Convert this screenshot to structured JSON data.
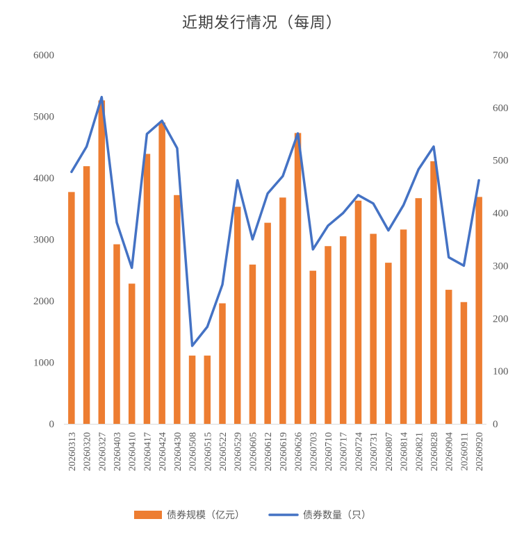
{
  "chart_data": {
    "type": "bar+line",
    "title": "近期发行情况（每周）",
    "categories": [
      "20260313",
      "20260320",
      "20260327",
      "20260403",
      "20260410",
      "20260417",
      "20260424",
      "20260430",
      "20260508",
      "20260515",
      "20260522",
      "20260529",
      "20260605",
      "20260612",
      "20260619",
      "20260626",
      "20260703",
      "20260710",
      "20260717",
      "20260724",
      "20260731",
      "20260807",
      "20260814",
      "20260821",
      "20260828",
      "20260904",
      "20260911",
      "20260920"
    ],
    "series": [
      {
        "name": "债券规模（亿元）",
        "type": "bar",
        "axis": "left",
        "color": "#ED7D31",
        "values": [
          3770,
          4190,
          5260,
          2920,
          2280,
          4390,
          4900,
          3720,
          1110,
          1110,
          1960,
          3530,
          2590,
          3270,
          3680,
          4730,
          2490,
          2890,
          3050,
          3630,
          3090,
          2620,
          3160,
          3670,
          4270,
          2180,
          1980,
          3690
        ]
      },
      {
        "name": "债券数量（只）",
        "type": "line",
        "axis": "right",
        "color": "#4472C4",
        "values": [
          478,
          526,
          620,
          382,
          296,
          550,
          575,
          523,
          148,
          184,
          264,
          462,
          350,
          437,
          470,
          551,
          331,
          376,
          400,
          434,
          418,
          367,
          415,
          483,
          526,
          316,
          300,
          462
        ]
      }
    ],
    "y_left": {
      "min": 0,
      "max": 6000,
      "ticks": [
        "0",
        "1000",
        "2000",
        "3000",
        "4000",
        "5000",
        "6000"
      ]
    },
    "y_right": {
      "min": 0,
      "max": 700,
      "ticks": [
        "0",
        "100",
        "200",
        "300",
        "400",
        "500",
        "600",
        "700"
      ]
    },
    "grid": false,
    "legend_position": "bottom",
    "legend": [
      {
        "label": "债券规模（亿元）",
        "kind": "bar",
        "color": "#ED7D31"
      },
      {
        "label": "债券数量（只）",
        "kind": "line",
        "color": "#4472C4"
      }
    ]
  }
}
